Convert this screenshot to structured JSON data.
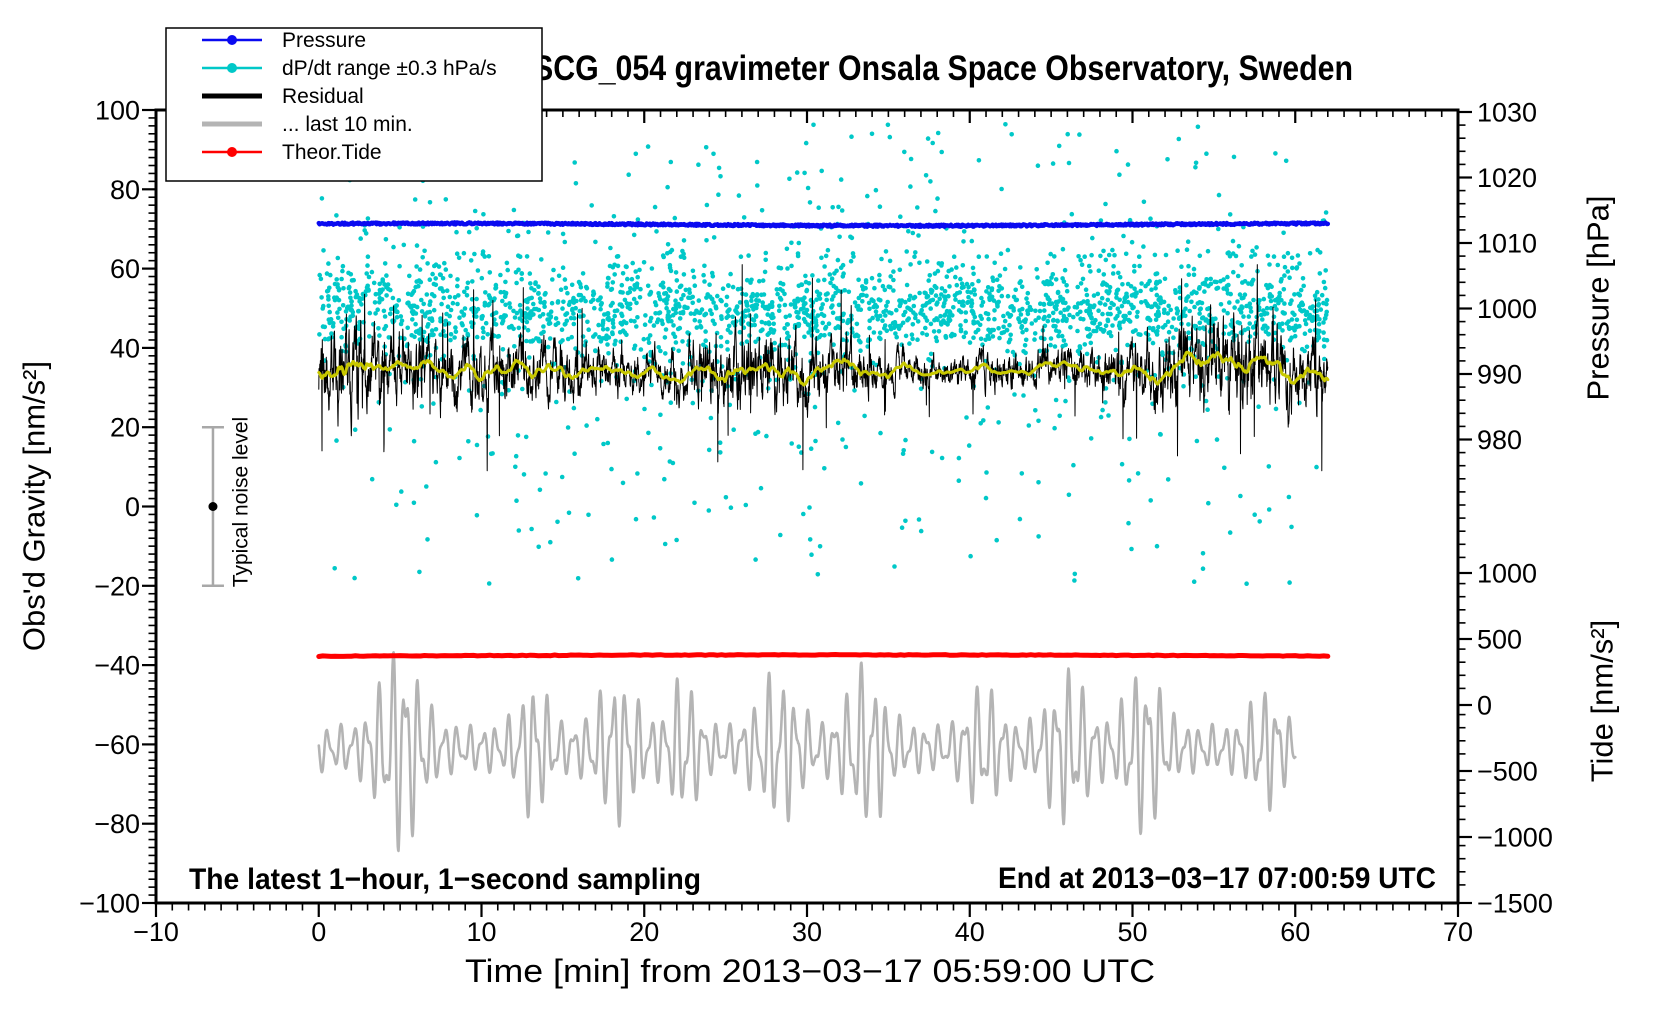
{
  "chart_data": {
    "type": "line",
    "title": "SCG_054 gravimeter Onsala Space Observatory, Sweden",
    "seed": 1337,
    "x_axis": {
      "label": "Time [min] from 2013−03−17 05:59:00 UTC",
      "range": [
        -10,
        70
      ],
      "major_ticks": [
        -10,
        0,
        10,
        20,
        30,
        40,
        50,
        60,
        70
      ],
      "tick_labels": [
        "−10",
        "0",
        "10",
        "20",
        "30",
        "40",
        "50",
        "60",
        "70"
      ],
      "minor_step": 1
    },
    "y_axis_left": {
      "label": "Obs'd Gravity [nm/s²]",
      "range": [
        -100,
        100
      ],
      "major_ticks": [
        100,
        80,
        60,
        40,
        20,
        0,
        -20,
        -40,
        -60,
        -80,
        -100
      ],
      "tick_labels": [
        "100",
        "80",
        "60",
        "40",
        "20",
        "0",
        "−20",
        "−40",
        "−60",
        "−80",
        "−100"
      ],
      "minor_step": 2
    },
    "y_axis_pressure": {
      "label": "Pressure [hPa]",
      "ticks": [
        1030,
        1020,
        1010,
        1000,
        990,
        980
      ],
      "tick_labels": [
        "1030",
        "1020",
        "1010",
        "1000",
        "990",
        "980"
      ],
      "minor_step_hpa": 2
    },
    "y_axis_tide": {
      "label": "Tide [nm/s²]",
      "ticks": [
        1000,
        500,
        0,
        -500,
        -1000,
        -1500
      ],
      "tick_labels": [
        "1000",
        "500",
        "0",
        "−500",
        "−1000",
        "−1500"
      ],
      "minor_step": 100
    },
    "legend": {
      "items": [
        {
          "label": "Pressure",
          "color": "#0a0af0",
          "style": "line-dot"
        },
        {
          "label": "dP/dt range ±0.3 hPa/s",
          "color": "#00c8c8",
          "style": "line-dot"
        },
        {
          "label": "Residual",
          "color": "#000000",
          "style": "line"
        },
        {
          "label": "... last 10 min.",
          "color": "#b4b4b4",
          "style": "line"
        },
        {
          "label": "Theor.Tide",
          "color": "#ff0000",
          "style": "line-dot"
        }
      ]
    },
    "annotations": {
      "sampling_note": "The latest 1−hour, 1−second sampling",
      "end_time_note": "End at 2013−03−17 07:00:59 UTC",
      "noise_label": "Typical noise level"
    },
    "series": {
      "pressure": {
        "name": "Pressure",
        "color": "#0a0af0",
        "t_range": [
          0,
          62
        ],
        "mean_hpa": 1013,
        "gravity_equiv": 71.1,
        "wiggle": 0.3
      },
      "dpdt_range": {
        "name": "dP/dt range ±0.3 hPa/s",
        "color": "#00c8c8",
        "t_range": [
          0,
          62
        ],
        "n_points": 2600,
        "core_center": 49.5,
        "core_sigma": 6.2,
        "core_band": [
          36,
          63.5
        ],
        "upper_tail_max": 97,
        "lower_tail_min": -20
      },
      "residual": {
        "name": "Residual",
        "color": "#000000",
        "t_range": [
          0,
          62
        ],
        "mean": 34.3,
        "spread": 4.2,
        "ar_coeff": 0.78,
        "spike_prob": 0.013,
        "value_max": 61,
        "value_min": 9,
        "samples_per_min": 60
      },
      "residual_smooth": {
        "name": "Residual 1-min smooth",
        "color": "#c8c800",
        "level": 34.4
      },
      "theor_tide": {
        "name": "Theor.Tide",
        "color": "#ff0000",
        "t_range": [
          0,
          62
        ],
        "tide_base": 371,
        "tide_hump": 9,
        "gravity_equiv": -37.8
      },
      "last_10_min": {
        "name": "... last 10 min.",
        "color": "#b4b4b4",
        "t_range": [
          0,
          60
        ],
        "center": -61,
        "base_amp": 3.5,
        "burst_gain": 13.5,
        "period_min": 0.8,
        "period2_min": 0.47,
        "burst_centers": [
          5,
          13.2,
          18.3,
          22.4,
          28.2,
          33.6,
          40.8,
          46,
          50.7,
          58.2
        ],
        "burst_heights": [
          1.35,
          0.75,
          0.85,
          0.8,
          0.9,
          1.0,
          0.7,
          0.95,
          1.05,
          0.65
        ],
        "burst_widths": [
          1.6,
          1.2,
          1.5,
          1.1,
          1.6,
          1.5,
          1.3,
          1.5,
          1.4,
          1.2
        ]
      },
      "noise_level": {
        "name": "Typical noise level",
        "center": 0,
        "half_range": 20,
        "t_position": -6.5,
        "bar_color": "#a8a8a8",
        "dot_color": "#000000"
      }
    },
    "frame_color": "#000000"
  }
}
